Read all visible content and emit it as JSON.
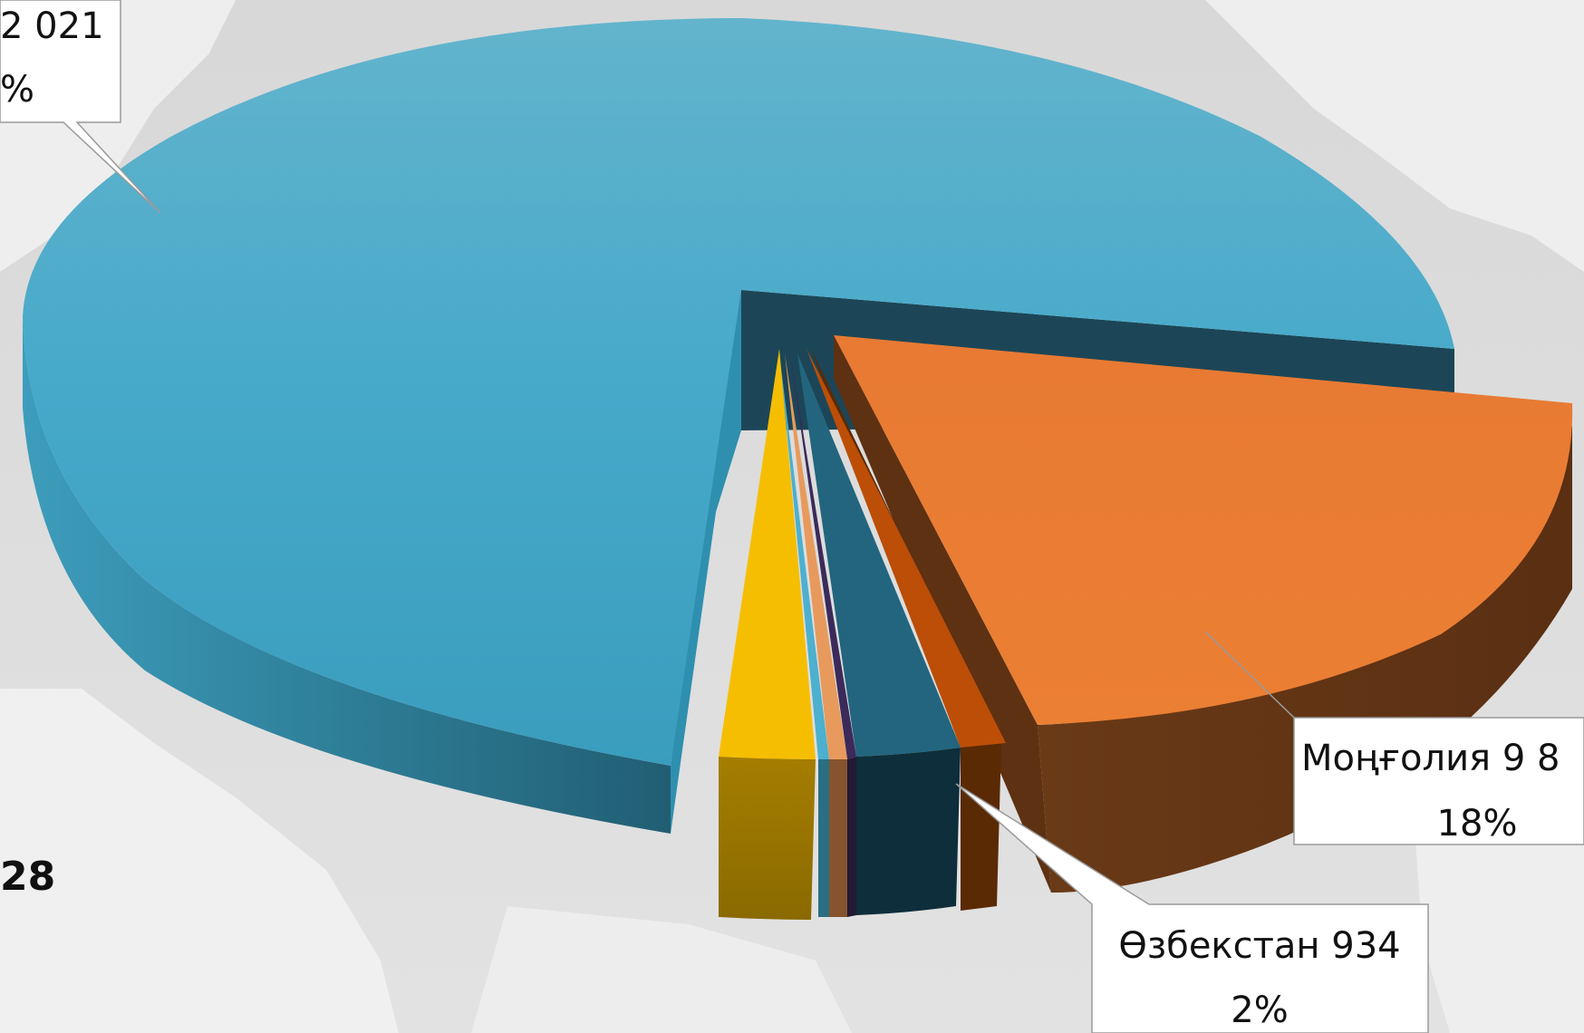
{
  "chart_data": {
    "type": "pie",
    "style": "3d-exploded",
    "slices": [
      {
        "label_line1": "2 021",
        "label_line2": "%",
        "value_pct": 75,
        "color": "#3FA6C6"
      },
      {
        "label_line1": "",
        "label_line2": "",
        "value_pct": 0.5,
        "color": "#1F5C70"
      },
      {
        "label_line1": "Моңғолия 9 8",
        "label_line2": "18%",
        "value_pct": 18,
        "color": "#E87A33"
      },
      {
        "label_line1": "",
        "label_line2": "",
        "value_pct": 0.6,
        "color": "#B84F08"
      },
      {
        "label_line1": "Өзбекстан 934",
        "label_line2": "2%",
        "value_pct": 2,
        "color": "#1E5F74"
      },
      {
        "label_line1": "",
        "label_line2": "",
        "value_pct": 0.3,
        "color": "#3B2A5A"
      },
      {
        "label_line1": "",
        "label_line2": "",
        "value_pct": 0.5,
        "color": "#E79A5C"
      },
      {
        "label_line1": "",
        "label_line2": "",
        "value_pct": 0.3,
        "color": "#4CB0CE"
      },
      {
        "label_line1": "",
        "label_line2": "",
        "value_pct": 2.5,
        "color": "#F6BE00"
      }
    ],
    "side_text": "28"
  }
}
